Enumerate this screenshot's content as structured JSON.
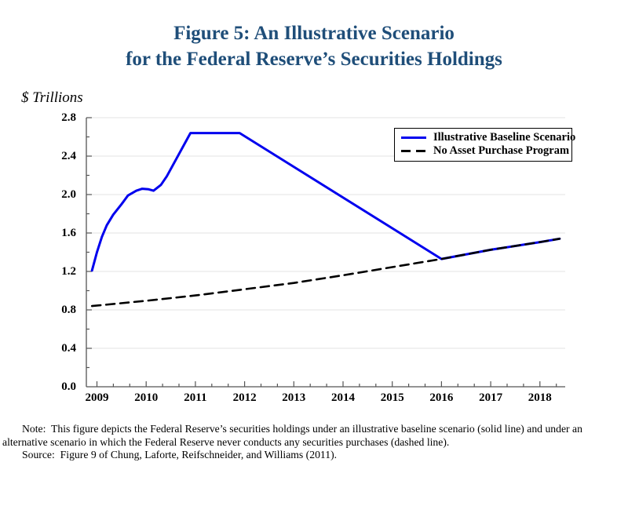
{
  "title": {
    "line1": "Figure 5: An Illustrative Scenario",
    "line2": "for the Federal Reserve’s Securities Holdings",
    "color": "#1F4E79"
  },
  "chart_data": {
    "type": "line",
    "title": "Figure 5: An Illustrative Scenario for the Federal Reserve’s Securities Holdings",
    "unit_label": "$ Trillions",
    "xlim": [
      2008.78,
      2018.52
    ],
    "ylim": [
      0,
      2.8
    ],
    "y_tick_step": 0.4,
    "y_minor_tick_step": 0.2,
    "x_ticks": [
      2009,
      2010,
      2011,
      2012,
      2013,
      2014,
      2015,
      2016,
      2017,
      2018
    ],
    "x_minor_divisions_per_year": 3,
    "grid": "horizontal-light",
    "grid_color": "#E3E3E3",
    "axis_color": "#555555",
    "legend_position": "top-right-inside",
    "series": [
      {
        "name": "Illustrative Baseline Scenario",
        "style": "solid",
        "color": "#0000EE",
        "width": 3,
        "points": [
          [
            2008.9,
            1.21
          ],
          [
            2009.0,
            1.4
          ],
          [
            2009.1,
            1.56
          ],
          [
            2009.2,
            1.68
          ],
          [
            2009.33,
            1.79
          ],
          [
            2009.5,
            1.9
          ],
          [
            2009.63,
            1.99
          ],
          [
            2009.8,
            2.04
          ],
          [
            2009.92,
            2.06
          ],
          [
            2010.05,
            2.055
          ],
          [
            2010.15,
            2.04
          ],
          [
            2010.3,
            2.1
          ],
          [
            2010.42,
            2.19
          ],
          [
            2010.9,
            2.64
          ],
          [
            2011.9,
            2.64
          ],
          [
            2016.0,
            1.33
          ],
          [
            2017.0,
            1.425
          ],
          [
            2018.0,
            1.505
          ],
          [
            2018.4,
            1.54
          ]
        ]
      },
      {
        "name": "No Asset Purchase Program",
        "style": "dashed",
        "color": "#000000",
        "width": 2.6,
        "points": [
          [
            2008.9,
            0.84
          ],
          [
            2010.0,
            0.895
          ],
          [
            2011.0,
            0.95
          ],
          [
            2012.0,
            1.015
          ],
          [
            2013.0,
            1.08
          ],
          [
            2014.0,
            1.16
          ],
          [
            2015.0,
            1.245
          ],
          [
            2016.0,
            1.33
          ],
          [
            2017.0,
            1.425
          ],
          [
            2018.0,
            1.505
          ],
          [
            2018.4,
            1.54
          ]
        ]
      }
    ]
  },
  "notes": {
    "note": "Note:  This figure depicts the Federal Reserve’s securities holdings under an illustrative baseline scenario (solid line) and under an alternative scenario in which the Federal Reserve never conducts any securities purchases (dashed line).",
    "source": "Source:  Figure 9 of Chung, Laforte, Reifschneider, and Williams (2011)."
  }
}
